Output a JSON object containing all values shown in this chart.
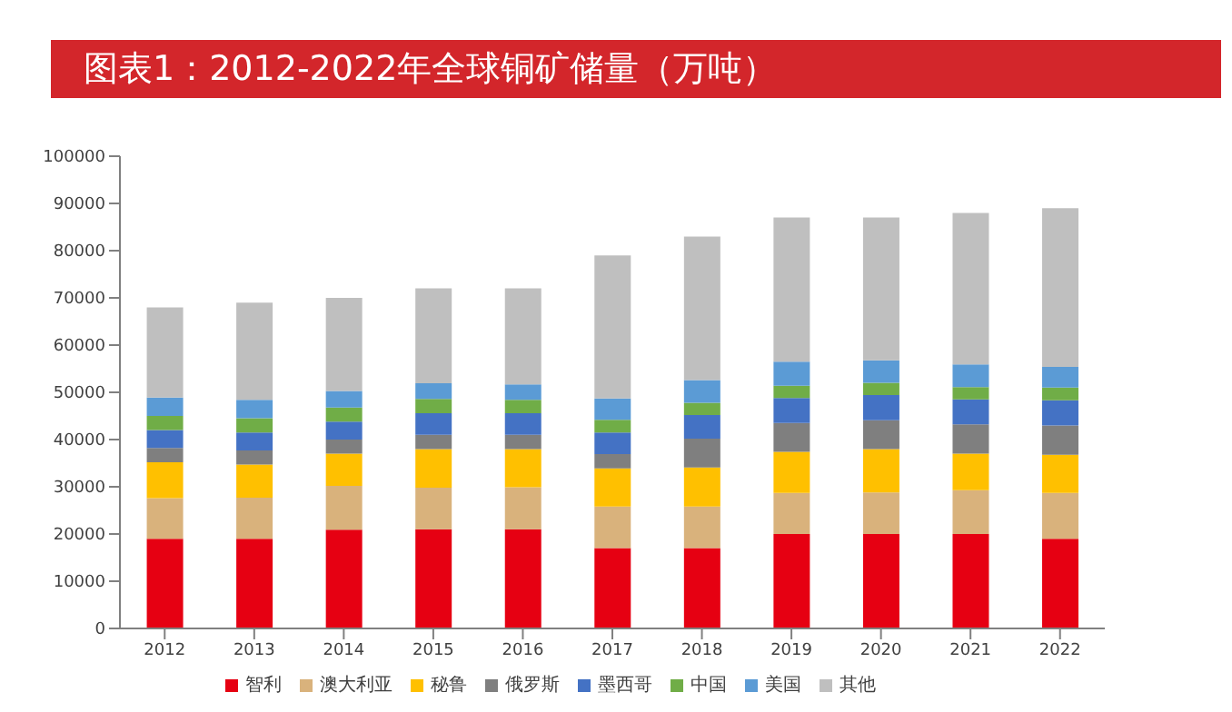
{
  "chart_data": {
    "type": "bar",
    "title": "图表1：2012-2022年全球铜矿储量（万吨）",
    "stacked": true,
    "categories": [
      "2012",
      "2013",
      "2014",
      "2015",
      "2016",
      "2017",
      "2018",
      "2019",
      "2020",
      "2021",
      "2022"
    ],
    "series": [
      {
        "name": "智利",
        "color": "#e60012",
        "values": [
          19000,
          19000,
          20900,
          21000,
          21000,
          17000,
          17000,
          20000,
          20000,
          20000,
          19000
        ]
      },
      {
        "name": "澳大利亚",
        "color": "#d9b27c",
        "values": [
          8600,
          8700,
          9300,
          8800,
          8900,
          8800,
          8800,
          8700,
          8800,
          9300,
          9700
        ]
      },
      {
        "name": "秘鲁",
        "color": "#ffc000",
        "values": [
          7600,
          7000,
          6800,
          8200,
          8100,
          8100,
          8300,
          8700,
          9200,
          7700,
          8100
        ]
      },
      {
        "name": "俄罗斯",
        "color": "#7f7f7f",
        "values": [
          3000,
          3000,
          3000,
          3000,
          3000,
          3000,
          6100,
          6100,
          6100,
          6200,
          6200
        ]
      },
      {
        "name": "墨西哥",
        "color": "#4472c4",
        "values": [
          3800,
          3800,
          3800,
          4600,
          4600,
          4600,
          5000,
          5300,
          5300,
          5300,
          5300
        ]
      },
      {
        "name": "中国",
        "color": "#70ad47",
        "values": [
          3000,
          3000,
          3000,
          3000,
          2800,
          2700,
          2600,
          2600,
          2600,
          2600,
          2700
        ]
      },
      {
        "name": "美国",
        "color": "#5b9bd5",
        "values": [
          3900,
          3900,
          3500,
          3300,
          3300,
          4500,
          4800,
          5100,
          4800,
          4800,
          4400
        ]
      },
      {
        "name": "其他",
        "color": "#bfbfbf",
        "values": [
          19100,
          20600,
          19700,
          20100,
          20300,
          30300,
          30400,
          30500,
          30200,
          32100,
          33600
        ]
      }
    ],
    "ylim": [
      0,
      100000
    ],
    "yticks": [
      0,
      10000,
      20000,
      30000,
      40000,
      50000,
      60000,
      70000,
      80000,
      90000,
      100000
    ],
    "legend": "bottom"
  }
}
